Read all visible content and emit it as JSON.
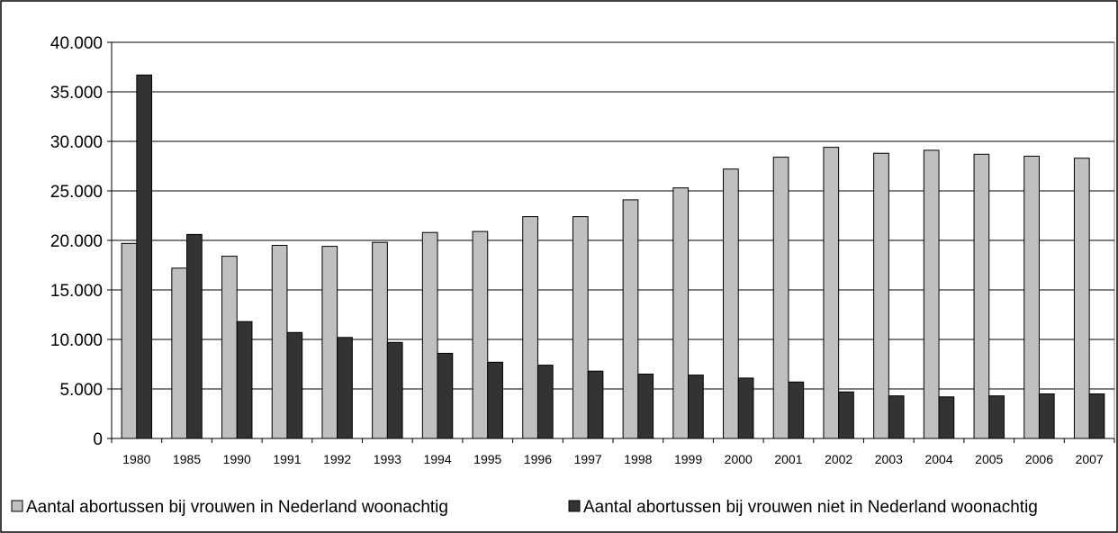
{
  "chart_data": {
    "type": "bar",
    "categories": [
      "1980",
      "1985",
      "1990",
      "1991",
      "1992",
      "1993",
      "1994",
      "1995",
      "1996",
      "1997",
      "1998",
      "1999",
      "2000",
      "2001",
      "2002",
      "2003",
      "2004",
      "2005",
      "2006",
      "2007"
    ],
    "series": [
      {
        "name": "Aantal abortussen bij vrouwen in Nederland woonachtig",
        "color": "#c0c0c0",
        "values": [
          19700,
          17200,
          18400,
          19500,
          19400,
          19800,
          20800,
          20900,
          22400,
          22400,
          24100,
          25300,
          27200,
          28400,
          29400,
          28800,
          29100,
          28700,
          28500,
          28300
        ]
      },
      {
        "name": "Aantal abortussen bij vrouwen niet in Nederland woonachtig",
        "color": "#333333",
        "values": [
          36700,
          20600,
          11800,
          10700,
          10200,
          9700,
          8600,
          7700,
          7400,
          6800,
          6500,
          6400,
          6100,
          5700,
          4700,
          4300,
          4200,
          4300,
          4500,
          4500
        ]
      }
    ],
    "ylim": [
      0,
      40000
    ],
    "yticks": [
      0,
      5000,
      10000,
      15000,
      20000,
      25000,
      30000,
      35000,
      40000
    ],
    "ytick_labels": [
      "0",
      "5.000",
      "10.000",
      "15.000",
      "20.000",
      "25.000",
      "30.000",
      "35.000",
      "40.000"
    ],
    "grid": true,
    "legend_position": "bottom",
    "title": "",
    "xlabel": "",
    "ylabel": ""
  }
}
